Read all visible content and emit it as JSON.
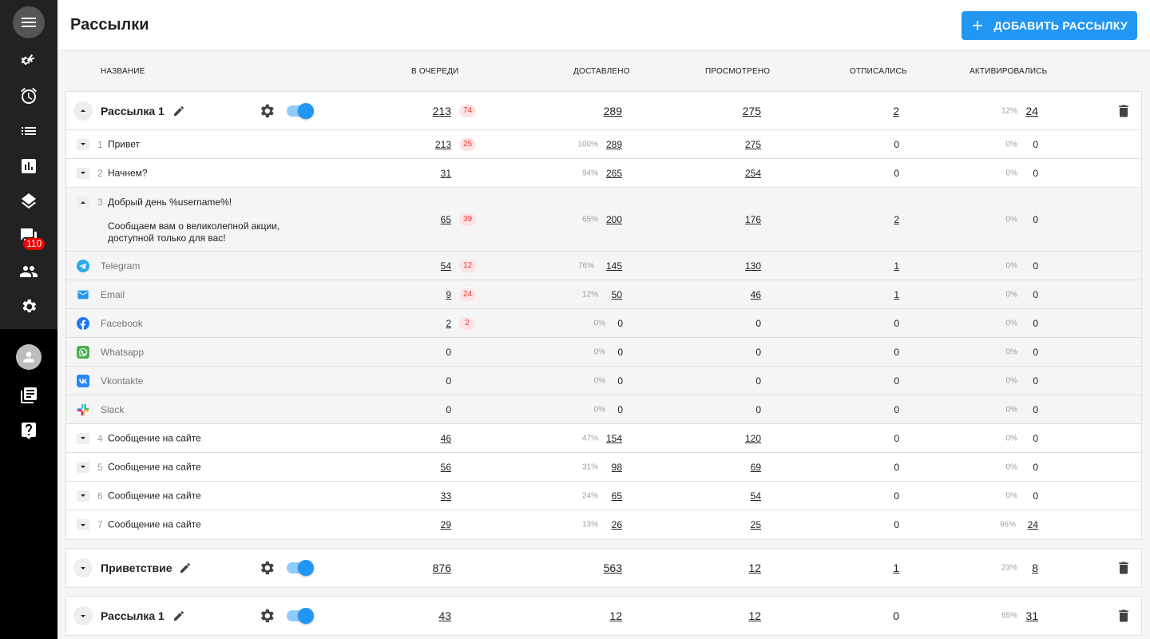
{
  "header": {
    "title": "Рассылки",
    "add_button_label": "ДОБАВИТЬ РАССЫЛКУ"
  },
  "sidebar": {
    "items": [
      {
        "icon": "menu-icon"
      },
      {
        "icon": "settings-gears-icon"
      },
      {
        "icon": "alarm-icon"
      },
      {
        "icon": "list-icon"
      },
      {
        "icon": "chart-icon"
      },
      {
        "icon": "layers-icon"
      },
      {
        "icon": "chat-icon",
        "badge": "110"
      },
      {
        "icon": "people-icon"
      },
      {
        "icon": "gear-icon"
      },
      {
        "icon": "avatar-icon"
      },
      {
        "icon": "library-icon"
      },
      {
        "icon": "help-icon"
      }
    ]
  },
  "columns": [
    "НАЗВАНИЕ",
    "В ОЧЕРЕДИ",
    "ДОСТАВЛЕНО",
    "ПРОСМОТРЕНО",
    "ОТПИСАЛИСЬ",
    "АКТИВИРОВАЛИСЬ"
  ],
  "campaigns": [
    {
      "name": "Рассылка 1",
      "queue": "213",
      "queue_badge": "74",
      "delivered": "289",
      "viewed": "275",
      "unsub": "2",
      "act_pct": "12%",
      "activated": "24",
      "messages": [
        {
          "idx": "1",
          "text": "Привет",
          "queue": "213",
          "queue_badge": "25",
          "del_pct": "100%",
          "delivered": "289",
          "viewed": "275",
          "unsub": "0",
          "act_pct": "0%",
          "activated": "0"
        },
        {
          "idx": "2",
          "text": "Начнем?",
          "queue": "31",
          "del_pct": "94%",
          "delivered": "265",
          "viewed": "254",
          "unsub": "0",
          "act_pct": "0%",
          "activated": "0"
        },
        {
          "idx": "3",
          "text": "Добрый день %username%!",
          "text2": "Сообщаем вам о великолепной акции,",
          "text3": "доступной только для вас!",
          "queue": "65",
          "queue_badge": "39",
          "del_pct": "65%",
          "delivered": "200",
          "viewed": "176",
          "unsub": "2",
          "act_pct": "0%",
          "activated": "0"
        }
      ],
      "channels": [
        {
          "name": "Telegram",
          "icon": "telegram-icon",
          "queue": "54",
          "queue_badge": "12",
          "del_pct": "76%",
          "delivered": "145",
          "viewed": "130",
          "unsub": "1",
          "act_pct": "0%",
          "activated": "0"
        },
        {
          "name": "Email",
          "icon": "email-icon",
          "queue": "9",
          "queue_badge": "24",
          "del_pct": "12%",
          "delivered": "50",
          "viewed": "46",
          "unsub": "1",
          "act_pct": "0%",
          "activated": "0"
        },
        {
          "name": "Facebook",
          "icon": "facebook-icon",
          "queue": "2",
          "queue_badge": "2",
          "del_pct": "0%",
          "delivered": "0",
          "viewed": "0",
          "unsub": "0",
          "act_pct": "0%",
          "activated": "0"
        },
        {
          "name": "Whatsapp",
          "icon": "whatsapp-icon",
          "queue": "0",
          "del_pct": "0%",
          "delivered": "0",
          "viewed": "0",
          "unsub": "0",
          "act_pct": "0%",
          "activated": "0"
        },
        {
          "name": "Vkontakte",
          "icon": "vk-icon",
          "queue": "0",
          "del_pct": "0%",
          "delivered": "0",
          "viewed": "0",
          "unsub": "0",
          "act_pct": "0%",
          "activated": "0"
        },
        {
          "name": "Slack",
          "icon": "slack-icon",
          "queue": "0",
          "del_pct": "0%",
          "delivered": "0",
          "viewed": "0",
          "unsub": "0",
          "act_pct": "0%",
          "activated": "0"
        }
      ],
      "more_messages": [
        {
          "idx": "4",
          "text": "Сообщение на сайте",
          "queue": "46",
          "del_pct": "47%",
          "delivered": "154",
          "viewed": "120",
          "unsub": "0",
          "act_pct": "0%",
          "activated": "0"
        },
        {
          "idx": "5",
          "text": "Сообщение на сайте",
          "queue": "56",
          "del_pct": "31%",
          "delivered": "98",
          "viewed": "69",
          "unsub": "0",
          "act_pct": "0%",
          "activated": "0"
        },
        {
          "idx": "6",
          "text": "Сообщение на сайте",
          "queue": "33",
          "del_pct": "24%",
          "delivered": "65",
          "viewed": "54",
          "unsub": "0",
          "act_pct": "0%",
          "activated": "0"
        },
        {
          "idx": "7",
          "text": "Сообщение на сайте",
          "queue": "29",
          "del_pct": "13%",
          "delivered": "26",
          "viewed": "25",
          "unsub": "0",
          "act_pct": "96%",
          "activated": "24"
        }
      ]
    },
    {
      "name": "Приветствие",
      "queue": "876",
      "delivered": "563",
      "viewed": "12",
      "unsub": "1",
      "act_pct": "23%",
      "activated": "8"
    },
    {
      "name": "Рассылка 1",
      "queue": "43",
      "delivered": "12",
      "viewed": "12",
      "unsub": "0",
      "act_pct": "65%",
      "activated": "31"
    }
  ],
  "colors": {
    "accent": "#2196f3",
    "badge_bg": "#fde3e3",
    "badge_text": "#e53935"
  }
}
